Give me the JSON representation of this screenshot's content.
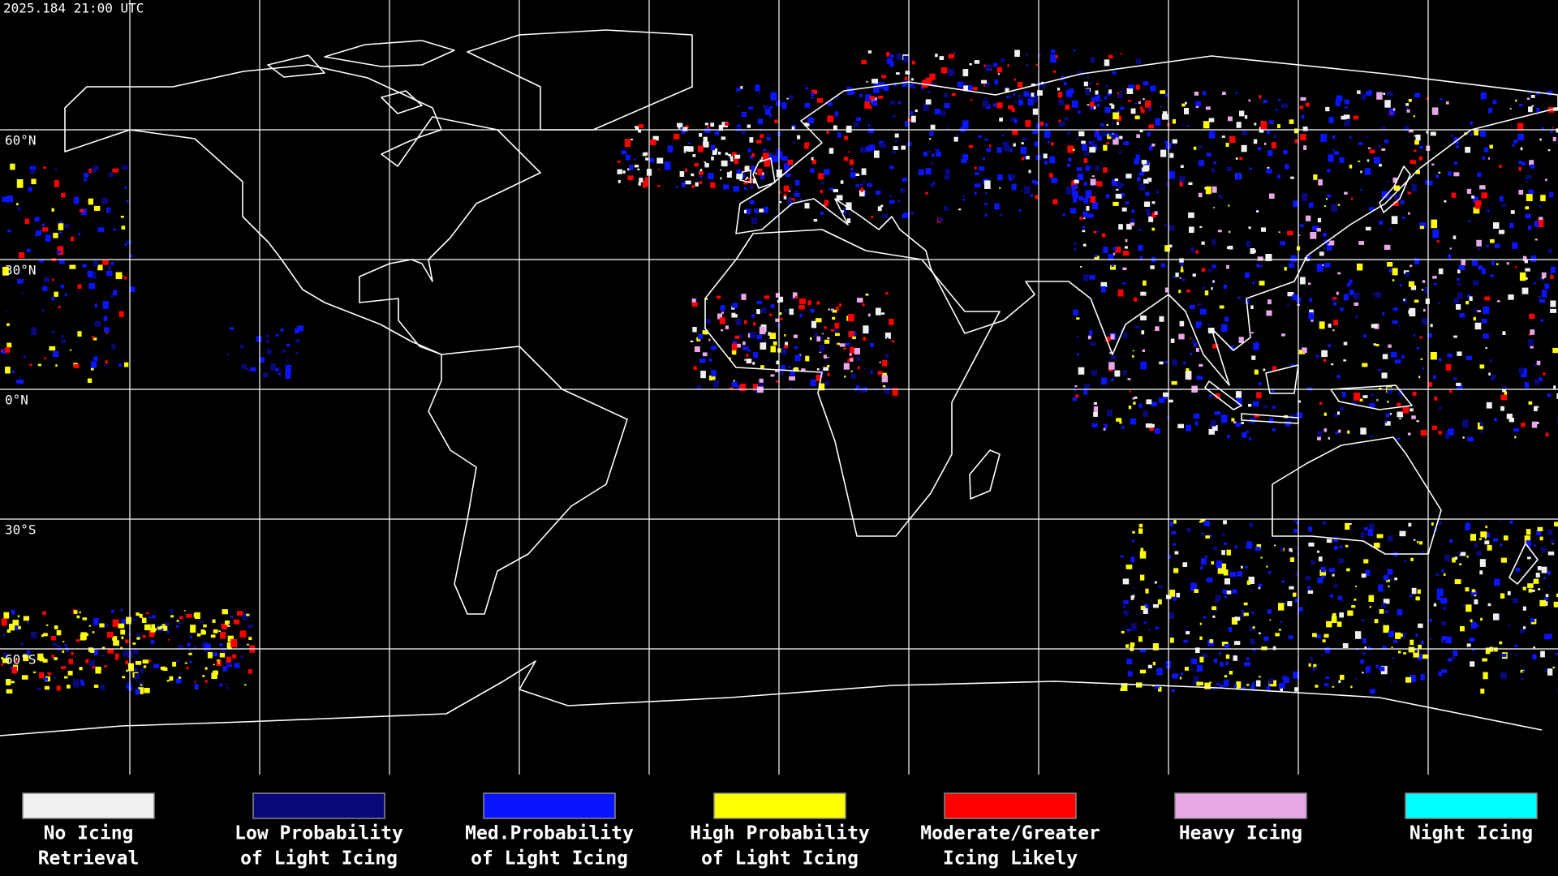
{
  "header": {
    "timestamp": "2025.184 21:00 UTC"
  },
  "map": {
    "lat_labels": [
      "60°N",
      "30°N",
      "0°N",
      "30°S",
      "60°S"
    ]
  },
  "legend": {
    "items": [
      {
        "label": [
          "No Icing",
          "Retrieval"
        ],
        "color": "#f0f0f0"
      },
      {
        "label": [
          "Low Probability",
          "of Light Icing"
        ],
        "color": "#08087a"
      },
      {
        "label": [
          "Med.Probability",
          "of Light Icing"
        ],
        "color": "#0a14ff"
      },
      {
        "label": [
          "High Probability",
          "of Light Icing"
        ],
        "color": "#ffff00"
      },
      {
        "label": [
          "Moderate/Greater",
          "Icing Likely"
        ],
        "color": "#ff0000"
      },
      {
        "label": [
          "Heavy Icing"
        ],
        "color": "#e8a8e8"
      },
      {
        "label": [
          "Night Icing"
        ],
        "color": "#00ffff"
      }
    ]
  }
}
